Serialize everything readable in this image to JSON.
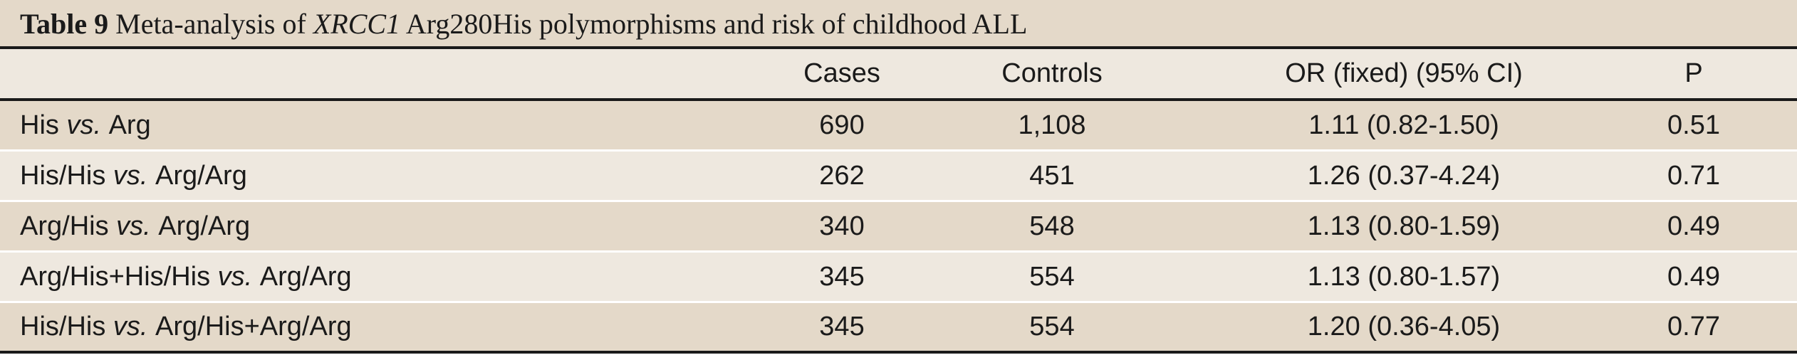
{
  "caption": {
    "number": "Table 9",
    "text_before": "Meta-analysis of",
    "gene": "XRCC1",
    "text_after": "Arg280His polymorphisms and risk of childhood ALL"
  },
  "columns": [
    "",
    "Cases",
    "Controls",
    "OR (fixed) (95% CI)",
    "P"
  ],
  "rows": [
    {
      "left": "His",
      "vs": "vs.",
      "right": "Arg",
      "cases": "690",
      "controls": "1,108",
      "or": "1.11 (0.82-1.50)",
      "p": "0.51"
    },
    {
      "left": "His/His",
      "vs": "vs.",
      "right": "Arg/Arg",
      "cases": "262",
      "controls": "451",
      "or": "1.26 (0.37-4.24)",
      "p": "0.71"
    },
    {
      "left": "Arg/His",
      "vs": "vs.",
      "right": "Arg/Arg",
      "cases": "340",
      "controls": "548",
      "or": "1.13 (0.80-1.59)",
      "p": "0.49"
    },
    {
      "left": "Arg/His+His/His",
      "vs": "vs.",
      "right": "Arg/Arg",
      "cases": "345",
      "controls": "554",
      "or": "1.13 (0.80-1.57)",
      "p": "0.49"
    },
    {
      "left": "His/His",
      "vs": "vs.",
      "right": "Arg/His+Arg/Arg",
      "cases": "345",
      "controls": "554",
      "or": "1.20 (0.36-4.05)",
      "p": "0.77"
    }
  ]
}
